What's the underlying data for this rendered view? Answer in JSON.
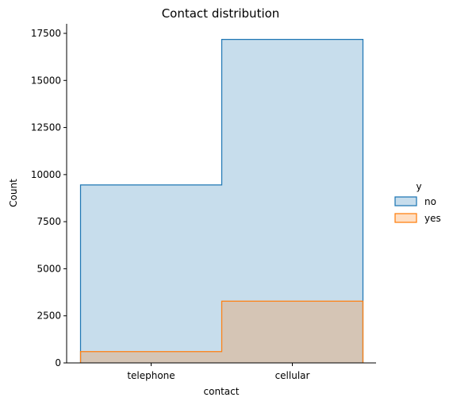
{
  "chart_data": {
    "type": "bar",
    "title": "Contact distribution",
    "xlabel": "contact",
    "ylabel": "Count",
    "categories": [
      "telephone",
      "cellular"
    ],
    "ylim": [
      0,
      18000
    ],
    "yticks": [
      0,
      2500,
      5000,
      7500,
      10000,
      12500,
      15000,
      17500
    ],
    "ytick_labels": [
      "0",
      "2500",
      "5000",
      "7500",
      "10000",
      "12500",
      "15000",
      "17500"
    ],
    "legend": {
      "title": "y",
      "placement": "right",
      "entries": [
        "no",
        "yes"
      ]
    },
    "series": [
      {
        "name": "no",
        "values": [
          9450,
          17180
        ],
        "color": "#1f77b4"
      },
      {
        "name": "yes",
        "values": [
          600,
          3280
        ],
        "color": "#ff7f0e"
      }
    ],
    "overlap_fill": "#c8c6bc",
    "grid": false
  }
}
